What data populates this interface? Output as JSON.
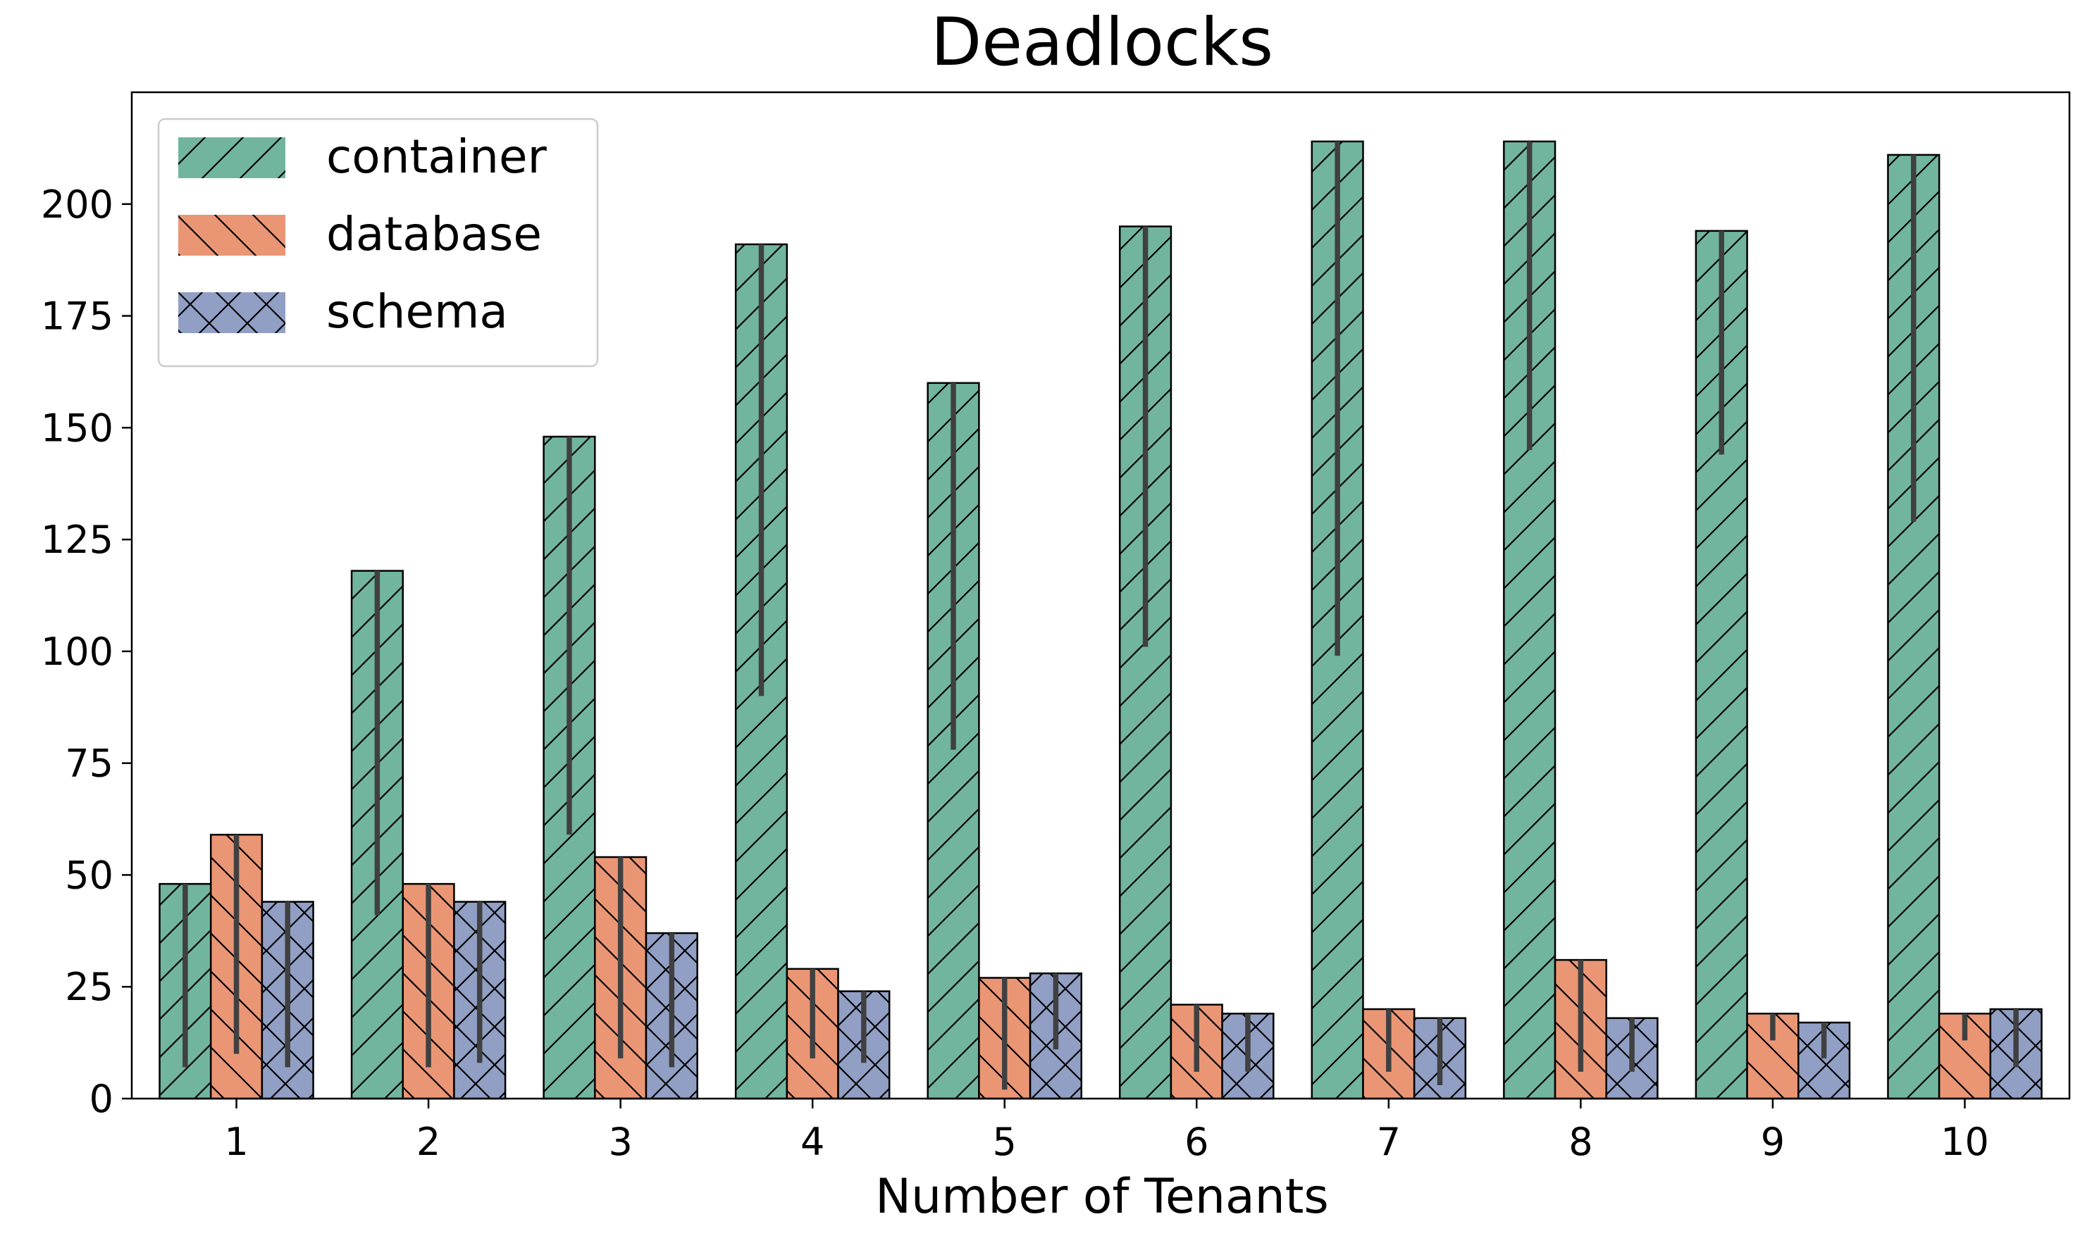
{
  "chart_data": {
    "type": "bar",
    "title": "Deadlocks",
    "xlabel": "Number of Tenants",
    "ylabel": "",
    "categories": [
      "1",
      "2",
      "3",
      "4",
      "5",
      "6",
      "7",
      "8",
      "9",
      "10"
    ],
    "ylim": [
      0,
      225
    ],
    "yticks": [
      "0",
      "25",
      "50",
      "75",
      "100",
      "125",
      "150",
      "175",
      "200"
    ],
    "grid": false,
    "legend_position": "top-left",
    "series": [
      {
        "name": "container",
        "color": "#72b59e",
        "hatch": "forward-diagonal",
        "values": [
          48,
          118,
          148,
          191,
          160,
          195,
          214,
          214,
          194,
          211
        ],
        "err_low": [
          7,
          41,
          59,
          90,
          78,
          101,
          99,
          145,
          144,
          129
        ],
        "err_high": [
          48,
          118,
          148,
          191,
          160,
          195,
          214,
          214,
          194,
          211
        ]
      },
      {
        "name": "database",
        "color": "#ea9675",
        "hatch": "back-diagonal",
        "values": [
          59,
          48,
          54,
          29,
          27,
          21,
          20,
          31,
          19,
          19
        ],
        "err_low": [
          10,
          7,
          9,
          9,
          2,
          6,
          6,
          6,
          13,
          13
        ],
        "err_high": [
          59,
          48,
          54,
          29,
          27,
          21,
          20,
          31,
          19,
          19
        ]
      },
      {
        "name": "schema",
        "color": "#919fc5",
        "hatch": "cross",
        "values": [
          44,
          44,
          37,
          24,
          28,
          19,
          18,
          18,
          17,
          20
        ],
        "err_low": [
          7,
          8,
          7,
          8,
          11,
          6,
          3,
          6,
          9,
          7
        ],
        "err_high": [
          44,
          44,
          37,
          24,
          28,
          19,
          18,
          18,
          17,
          20
        ]
      }
    ]
  }
}
